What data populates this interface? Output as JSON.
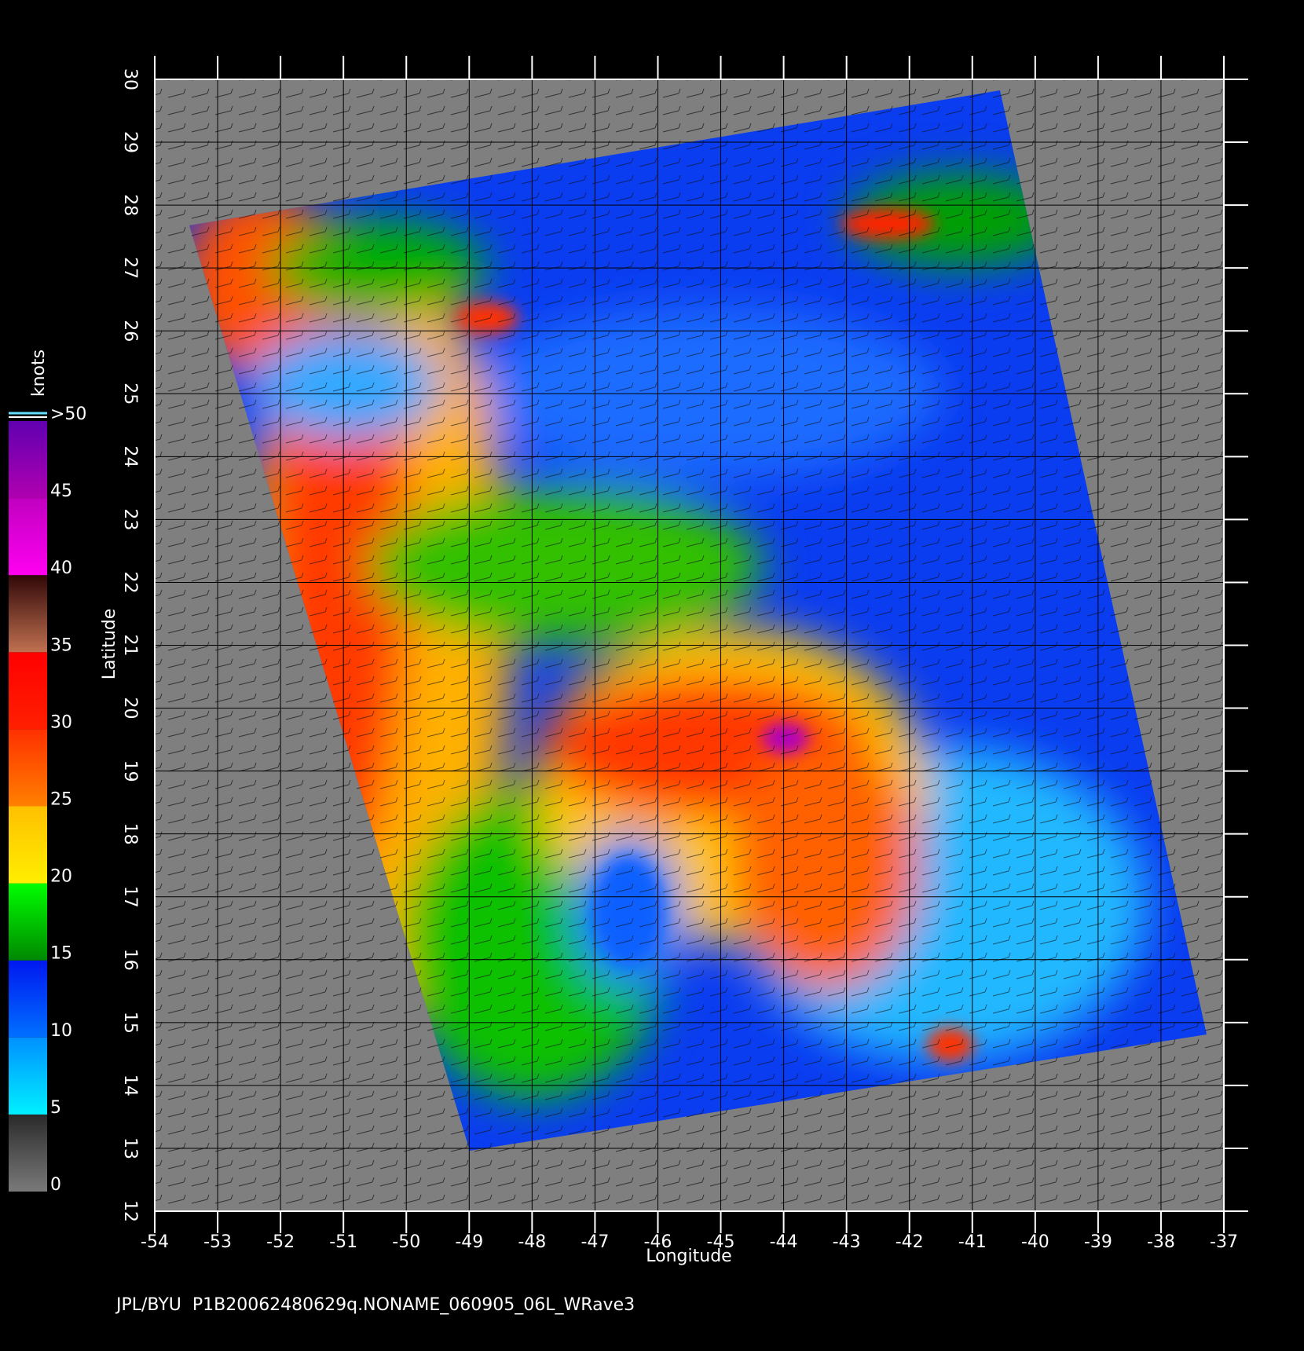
{
  "chart_data": {
    "type": "map",
    "xlabel": "Longitude",
    "ylabel": "Latitude",
    "xlim": [
      -54,
      -37
    ],
    "ylim": [
      12,
      30
    ],
    "xticks": [
      -54,
      -53,
      -52,
      -51,
      -50,
      -49,
      -48,
      -47,
      -46,
      -45,
      -44,
      -43,
      -42,
      -41,
      -40,
      -39,
      -38,
      -37
    ],
    "yticks": [
      12,
      13,
      14,
      15,
      16,
      17,
      18,
      19,
      20,
      21,
      22,
      23,
      24,
      25,
      26,
      27,
      28,
      29,
      30
    ],
    "grid": true,
    "colorbar": {
      "label": "knots",
      "ticks": [
        0,
        5,
        10,
        15,
        20,
        25,
        30,
        35,
        40,
        45,
        {
          "value": 50,
          "label": ">50"
        }
      ],
      "colors": [
        [
          "#7a7a7a",
          "#2a2a2a"
        ],
        [
          "#00f0ff",
          "#0090ff"
        ],
        [
          "#0070ff",
          "#0018f0"
        ],
        [
          "#008800",
          "#00ff00"
        ],
        [
          "#ffee00",
          "#ffc000"
        ],
        [
          "#ff8000",
          "#ff3000"
        ],
        [
          "#ff2000",
          "#ff0000"
        ],
        [
          "#c07050",
          "#300808"
        ],
        [
          "#ff00f0",
          "#c000c0"
        ],
        [
          "#b000b0",
          "#6000b0"
        ]
      ]
    },
    "footer": "JPL/BYU  P1B20062480629q.NONAME_060905_06L_WRave3"
  }
}
